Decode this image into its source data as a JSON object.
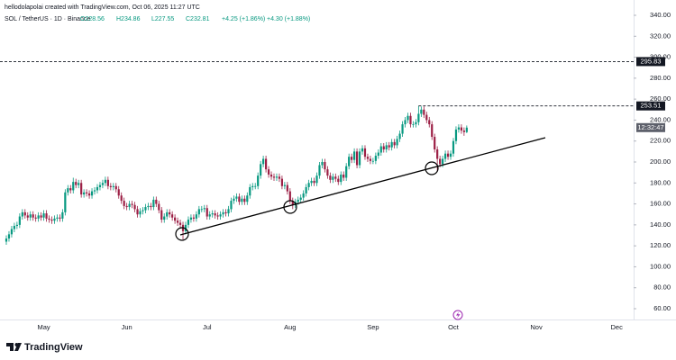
{
  "header": {
    "author_line": "hellodolapolai created with TradingView.com, Oct 06, 2025 11:27 UTC",
    "symbol": "SOL / TetherUS · 1D · Binance",
    "ohlc": [
      "O228.56",
      "H234.86",
      "L227.55",
      "C232.81"
    ],
    "change": "+4.25 (+1.86%)",
    "change2": "+4.30 (+1.88%)"
  },
  "chart_data": {
    "type": "candlestick",
    "categories": [
      null,
      null,
      null,
      null,
      null,
      null,
      null,
      null,
      null,
      null,
      null,
      null,
      null,
      null,
      "May",
      null,
      null,
      null,
      null,
      null,
      null,
      null,
      null,
      null,
      null,
      null,
      null,
      null,
      null,
      null,
      null,
      null,
      null,
      null,
      null,
      null,
      null,
      null,
      null,
      null,
      null,
      null,
      null,
      null,
      null,
      "Jun",
      null,
      null,
      null,
      null,
      null,
      null,
      null,
      null,
      null,
      null,
      null,
      null,
      null,
      null,
      null,
      null,
      null,
      null,
      null,
      null,
      null,
      null,
      null,
      null,
      null,
      null,
      null,
      null,
      null,
      "Jul",
      null,
      null,
      null,
      null,
      null,
      null,
      null,
      null,
      null,
      null,
      null,
      null,
      null,
      null,
      null,
      null,
      null,
      null,
      null,
      null,
      null,
      null,
      null,
      null,
      null,
      null,
      null,
      null,
      null,
      null,
      "Aug",
      null,
      null,
      null,
      null,
      null,
      null,
      null,
      null,
      null,
      null,
      null,
      null,
      null,
      null,
      null,
      null,
      null,
      null,
      null,
      null,
      null,
      null,
      null,
      null,
      null,
      null,
      null,
      null,
      null,
      null,
      "Sep",
      null,
      null,
      null,
      null,
      null,
      null,
      null,
      null,
      null,
      null,
      null,
      null,
      null,
      null,
      null,
      null,
      null,
      null,
      null,
      null,
      null,
      null,
      null,
      null,
      null,
      null,
      null,
      null,
      null,
      "Oct",
      null,
      null,
      null,
      null,
      null,
      null,
      null,
      null,
      null,
      null,
      null,
      null,
      null,
      null,
      null,
      null,
      null,
      null,
      null,
      null,
      null,
      null,
      null,
      null,
      null,
      null,
      null,
      null,
      null,
      null,
      "Nov",
      null,
      null,
      null,
      null,
      null,
      null,
      null,
      null,
      null,
      null,
      null,
      null,
      null,
      null,
      null,
      null,
      null,
      null,
      null,
      null,
      null,
      null,
      null,
      null,
      null,
      null,
      null,
      null,
      null,
      "Dec"
    ],
    "open": [
      124,
      127,
      131,
      136,
      139,
      140,
      148,
      152,
      149,
      147,
      150,
      147,
      146,
      149,
      147,
      151,
      146,
      145,
      144,
      146,
      147,
      146,
      152,
      171,
      175,
      173,
      181,
      178,
      180,
      169,
      171,
      170,
      168,
      172,
      173,
      176,
      178,
      180,
      183,
      177,
      176,
      177,
      174,
      168,
      163,
      158,
      157,
      160,
      159,
      155,
      150,
      153,
      154,
      157,
      158,
      157,
      164,
      160,
      154,
      145,
      148,
      152,
      150,
      147,
      144,
      142,
      140,
      134,
      140,
      145,
      147,
      146,
      150,
      155,
      155,
      156,
      148,
      150,
      151,
      149,
      148,
      150,
      152,
      151,
      155,
      163,
      165,
      167,
      162,
      165,
      162,
      168,
      176,
      177,
      177,
      187,
      198,
      203,
      193,
      188,
      186,
      185,
      186,
      184,
      177,
      178,
      172,
      163,
      159,
      162,
      164,
      166,
      170,
      176,
      180,
      182,
      180,
      187,
      197,
      200,
      193,
      187,
      183,
      186,
      184,
      181,
      188,
      185,
      196,
      205,
      202,
      210,
      197,
      210,
      213,
      205,
      203,
      201,
      201,
      206,
      209,
      215,
      212,
      216,
      214,
      219,
      216,
      222,
      227,
      236,
      240,
      244,
      236,
      236,
      238,
      246,
      250,
      245,
      240,
      236,
      224,
      212,
      203,
      198,
      203,
      208,
      205,
      208,
      220,
      231,
      233,
      230,
      228.56,
      null,
      null,
      null,
      null,
      null,
      null,
      null,
      null,
      null,
      null,
      null,
      null,
      null,
      null,
      null,
      null,
      null,
      null,
      null,
      null,
      null,
      null,
      null,
      null,
      null,
      null,
      null,
      null,
      null,
      null,
      null,
      null,
      null,
      null,
      null,
      null,
      null,
      null,
      null,
      null,
      null,
      null,
      null,
      null,
      null,
      null,
      null,
      null,
      null,
      null,
      null,
      null,
      null,
      null,
      null,
      null
    ],
    "high": [
      130,
      134,
      139,
      142,
      143,
      151,
      155,
      155,
      152,
      153,
      153,
      150,
      152,
      152,
      154,
      154,
      149,
      148,
      149,
      150,
      150,
      155,
      174,
      178,
      178,
      185,
      184,
      183,
      183,
      174,
      174,
      173,
      175,
      176,
      179,
      181,
      183,
      186,
      186,
      180,
      180,
      180,
      177,
      171,
      166,
      161,
      163,
      163,
      162,
      158,
      156,
      157,
      160,
      161,
      161,
      167,
      167,
      163,
      157,
      151,
      155,
      155,
      153,
      150,
      147,
      145,
      143,
      143,
      148,
      150,
      150,
      153,
      158,
      158,
      159,
      159,
      153,
      154,
      154,
      152,
      153,
      155,
      155,
      158,
      166,
      168,
      170,
      170,
      168,
      168,
      171,
      179,
      180,
      180,
      190,
      201,
      206,
      206,
      196,
      191,
      189,
      189,
      189,
      187,
      181,
      181,
      175,
      166,
      165,
      167,
      169,
      173,
      179,
      183,
      185,
      185,
      190,
      200,
      203,
      203,
      196,
      190,
      189,
      189,
      187,
      191,
      191,
      199,
      208,
      208,
      213,
      213,
      213,
      216,
      216,
      208,
      206,
      204,
      209,
      212,
      218,
      218,
      219,
      219,
      222,
      222,
      225,
      230,
      239,
      243,
      247,
      247,
      239,
      241,
      253.51,
      253,
      253,
      248,
      243,
      239,
      227,
      215,
      206,
      206,
      211,
      211,
      211,
      223,
      234,
      236,
      236,
      233,
      234.86,
      null,
      null,
      null,
      null,
      null,
      null,
      null,
      null,
      null,
      null,
      null,
      null,
      null,
      null,
      null,
      null,
      null,
      null,
      null,
      null,
      null,
      null,
      null,
      null,
      null,
      null,
      null,
      null,
      null,
      null,
      null,
      null,
      null,
      null,
      null,
      null,
      null,
      null,
      null,
      null,
      null,
      null,
      null,
      null,
      null,
      null,
      null,
      null,
      null,
      null,
      null,
      null,
      null,
      null,
      null,
      null
    ],
    "low": [
      121,
      124,
      128,
      133,
      136,
      137,
      145,
      146,
      144,
      144,
      144,
      143,
      143,
      144,
      144,
      143,
      142,
      141,
      141,
      143,
      143,
      143,
      149,
      168,
      170,
      170,
      175,
      175,
      166,
      166,
      167,
      165,
      165,
      169,
      170,
      173,
      175,
      177,
      174,
      173,
      173,
      171,
      165,
      160,
      155,
      154,
      154,
      156,
      152,
      147,
      147,
      150,
      151,
      154,
      154,
      154,
      157,
      151,
      142,
      142,
      145,
      147,
      144,
      141,
      139,
      137,
      126,
      131,
      137,
      142,
      143,
      143,
      147,
      152,
      152,
      145,
      145,
      147,
      146,
      145,
      145,
      147,
      148,
      148,
      152,
      160,
      162,
      159,
      159,
      159,
      159,
      165,
      173,
      174,
      174,
      184,
      195,
      190,
      185,
      183,
      182,
      182,
      181,
      174,
      174,
      169,
      160,
      155,
      156,
      159,
      161,
      163,
      167,
      173,
      177,
      177,
      177,
      184,
      194,
      190,
      184,
      180,
      180,
      181,
      178,
      178,
      182,
      182,
      193,
      199,
      199,
      194,
      194,
      207,
      202,
      200,
      198,
      198,
      198,
      203,
      206,
      209,
      209,
      211,
      211,
      213,
      213,
      219,
      224,
      233,
      237,
      233,
      233,
      233,
      235,
      243,
      242,
      237,
      233,
      221,
      209,
      191,
      195,
      195,
      200,
      202,
      202,
      205,
      217,
      228,
      227,
      225,
      227.55,
      null,
      null,
      null,
      null,
      null,
      null,
      null,
      null,
      null,
      null,
      null,
      null,
      null,
      null,
      null,
      null,
      null,
      null,
      null,
      null,
      null,
      null,
      null,
      null,
      null,
      null,
      null,
      null,
      null,
      null,
      null,
      null,
      null,
      null,
      null,
      null,
      null,
      null,
      null,
      null,
      null,
      null,
      null,
      null,
      null,
      null,
      null,
      null,
      null,
      null,
      null,
      null,
      null,
      null,
      null,
      null
    ],
    "close": [
      127,
      131,
      136,
      139,
      140,
      148,
      152,
      149,
      147,
      150,
      147,
      146,
      149,
      147,
      151,
      146,
      145,
      144,
      146,
      147,
      146,
      152,
      171,
      175,
      173,
      181,
      178,
      180,
      169,
      171,
      170,
      168,
      172,
      173,
      176,
      178,
      180,
      183,
      177,
      176,
      177,
      174,
      168,
      163,
      158,
      157,
      160,
      159,
      155,
      150,
      153,
      154,
      157,
      158,
      157,
      164,
      160,
      154,
      145,
      148,
      152,
      150,
      147,
      144,
      142,
      140,
      134,
      140,
      145,
      147,
      146,
      150,
      155,
      155,
      156,
      148,
      150,
      151,
      149,
      148,
      150,
      152,
      151,
      155,
      163,
      165,
      167,
      162,
      165,
      162,
      168,
      176,
      177,
      177,
      187,
      198,
      203,
      193,
      188,
      186,
      185,
      186,
      184,
      177,
      178,
      172,
      163,
      159,
      162,
      164,
      166,
      170,
      176,
      180,
      182,
      180,
      187,
      197,
      200,
      193,
      187,
      183,
      186,
      184,
      181,
      188,
      185,
      196,
      205,
      202,
      210,
      197,
      210,
      213,
      205,
      203,
      201,
      201,
      206,
      209,
      215,
      212,
      216,
      214,
      219,
      216,
      222,
      227,
      236,
      240,
      244,
      236,
      236,
      238,
      246,
      250,
      245,
      240,
      236,
      224,
      212,
      203,
      198,
      203,
      208,
      205,
      208,
      220,
      231,
      233,
      230,
      228.56,
      232.81,
      null,
      null,
      null,
      null,
      null,
      null,
      null,
      null,
      null,
      null,
      null,
      null,
      null,
      null,
      null,
      null,
      null,
      null,
      null,
      null,
      null,
      null,
      null,
      null,
      null,
      null,
      null,
      null,
      null,
      null,
      null,
      null,
      null,
      null,
      null,
      null,
      null,
      null,
      null,
      null,
      null,
      null,
      null,
      null,
      null,
      null,
      null,
      null,
      null,
      null,
      null,
      null,
      null,
      null,
      null,
      null
    ],
    "up_color": "#089981",
    "down_color": "#9c1f45",
    "ylim": [
      49.7,
      354.6
    ],
    "yticks": [
      {
        "value": 60,
        "label": "60.00"
      },
      {
        "value": 80,
        "label": "80.00"
      },
      {
        "value": 100,
        "label": "100.00"
      },
      {
        "value": 120,
        "label": "120.00"
      },
      {
        "value": 140,
        "label": "140.00"
      },
      {
        "value": 160,
        "label": "160.00"
      },
      {
        "value": 180,
        "label": "180.00"
      },
      {
        "value": 200,
        "label": "200.00"
      },
      {
        "value": 220,
        "label": "220.00"
      },
      {
        "value": 240,
        "label": "240.00"
      },
      {
        "value": 260,
        "label": "260.00"
      },
      {
        "value": 280,
        "label": "280.00"
      },
      {
        "value": 300,
        "label": "300.00"
      },
      {
        "value": 320,
        "label": "320.00"
      },
      {
        "value": 340,
        "label": "340.00"
      }
    ],
    "price_lines": [
      295.83,
      253.51
    ],
    "countdown": "12:32:47"
  },
  "footer": {
    "brand": "TradingView"
  }
}
